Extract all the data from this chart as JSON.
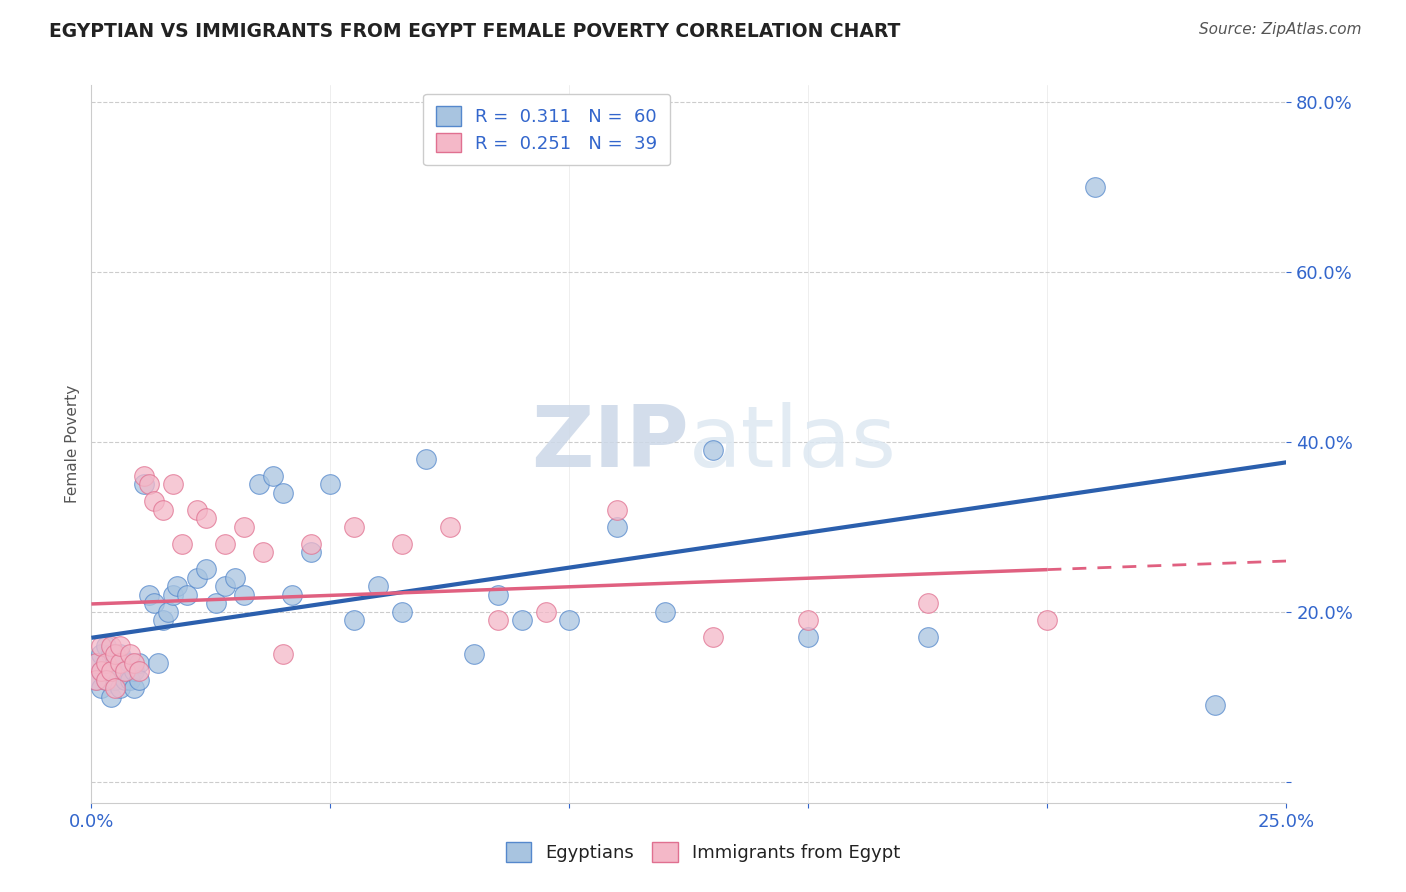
{
  "title": "EGYPTIAN VS IMMIGRANTS FROM EGYPT FEMALE POVERTY CORRELATION CHART",
  "source": "Source: ZipAtlas.com",
  "ylabel": "Female Poverty",
  "x_min": 0.0,
  "x_max": 0.25,
  "y_min": -0.025,
  "y_max": 0.82,
  "y_ticks": [
    0.0,
    0.2,
    0.4,
    0.6,
    0.8
  ],
  "y_tick_labels": [
    "",
    "20.0%",
    "40.0%",
    "60.0%",
    "80.0%"
  ],
  "color_blue": "#a8c4e0",
  "color_pink": "#f4b8c8",
  "edge_blue": "#5588cc",
  "edge_pink": "#e07090",
  "line_blue": "#2b5fad",
  "line_pink": "#e06080",
  "watermark_color": "#dde8f0",
  "egyptians_x": [
    0.001,
    0.001,
    0.002,
    0.002,
    0.002,
    0.003,
    0.003,
    0.003,
    0.004,
    0.004,
    0.004,
    0.005,
    0.005,
    0.005,
    0.006,
    0.006,
    0.007,
    0.007,
    0.008,
    0.008,
    0.009,
    0.009,
    0.01,
    0.01,
    0.011,
    0.012,
    0.013,
    0.014,
    0.015,
    0.016,
    0.017,
    0.018,
    0.02,
    0.022,
    0.024,
    0.026,
    0.028,
    0.03,
    0.032,
    0.035,
    0.038,
    0.04,
    0.042,
    0.046,
    0.05,
    0.055,
    0.06,
    0.065,
    0.07,
    0.08,
    0.085,
    0.09,
    0.1,
    0.11,
    0.12,
    0.13,
    0.15,
    0.175,
    0.21,
    0.235
  ],
  "egyptians_y": [
    0.14,
    0.12,
    0.15,
    0.13,
    0.11,
    0.16,
    0.12,
    0.14,
    0.13,
    0.15,
    0.1,
    0.14,
    0.12,
    0.13,
    0.11,
    0.15,
    0.12,
    0.13,
    0.12,
    0.14,
    0.11,
    0.13,
    0.14,
    0.12,
    0.35,
    0.22,
    0.21,
    0.14,
    0.19,
    0.2,
    0.22,
    0.23,
    0.22,
    0.24,
    0.25,
    0.21,
    0.23,
    0.24,
    0.22,
    0.35,
    0.36,
    0.34,
    0.22,
    0.27,
    0.35,
    0.19,
    0.23,
    0.2,
    0.38,
    0.15,
    0.22,
    0.19,
    0.19,
    0.3,
    0.2,
    0.39,
    0.17,
    0.17,
    0.7,
    0.09
  ],
  "immigrants_x": [
    0.001,
    0.001,
    0.002,
    0.002,
    0.003,
    0.003,
    0.004,
    0.004,
    0.005,
    0.005,
    0.006,
    0.006,
    0.007,
    0.008,
    0.009,
    0.01,
    0.011,
    0.012,
    0.013,
    0.015,
    0.017,
    0.019,
    0.022,
    0.024,
    0.028,
    0.032,
    0.036,
    0.04,
    0.046,
    0.055,
    0.065,
    0.075,
    0.085,
    0.095,
    0.11,
    0.13,
    0.15,
    0.175,
    0.2
  ],
  "immigrants_y": [
    0.14,
    0.12,
    0.16,
    0.13,
    0.14,
    0.12,
    0.16,
    0.13,
    0.15,
    0.11,
    0.14,
    0.16,
    0.13,
    0.15,
    0.14,
    0.13,
    0.36,
    0.35,
    0.33,
    0.32,
    0.35,
    0.28,
    0.32,
    0.31,
    0.28,
    0.3,
    0.27,
    0.15,
    0.28,
    0.3,
    0.28,
    0.3,
    0.19,
    0.2,
    0.32,
    0.17,
    0.19,
    0.21,
    0.19
  ]
}
